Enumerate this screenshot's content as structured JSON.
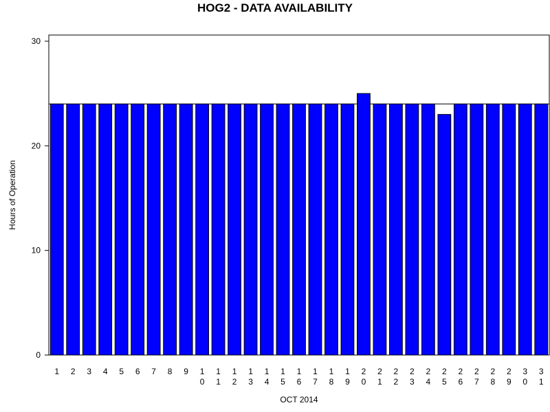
{
  "chart_data": {
    "type": "bar",
    "title": "HOG2 - DATA AVAILABILITY",
    "xlabel": "OCT 2014",
    "ylabel": "Hours of Operation",
    "categories": [
      "1",
      "2",
      "3",
      "4",
      "5",
      "6",
      "7",
      "8",
      "9",
      "10",
      "11",
      "12",
      "13",
      "14",
      "15",
      "16",
      "17",
      "18",
      "19",
      "20",
      "21",
      "22",
      "23",
      "24",
      "25",
      "26",
      "27",
      "28",
      "29",
      "30",
      "31"
    ],
    "values": [
      24,
      24,
      24,
      24,
      24,
      24,
      24,
      24,
      24,
      24,
      24,
      24,
      24,
      24,
      24,
      24,
      24,
      24,
      24,
      25,
      24,
      24,
      24,
      24,
      23,
      24,
      24,
      24,
      24,
      24,
      24
    ],
    "color": "#0000ff",
    "reference_line": 24,
    "ylim": [
      0,
      30
    ],
    "yticks": [
      0,
      10,
      20,
      30
    ]
  }
}
